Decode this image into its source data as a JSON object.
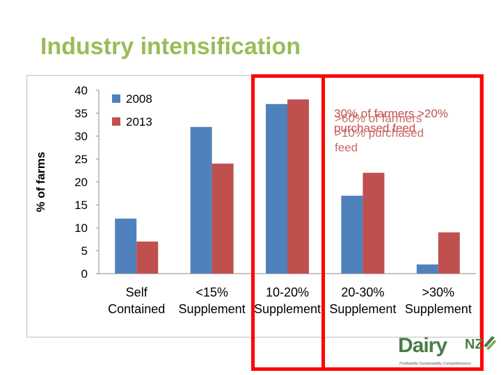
{
  "slide": {
    "title": "Industry intensification"
  },
  "annotations": {
    "line_a1": "30% of farmers >20%",
    "line_a2": "purchased feed",
    "line_b1": ">60% of farmers",
    "line_b2": ">10% purchased",
    "line_b3": "feed"
  },
  "logo": {
    "dairy": "Dairy",
    "nz": "NZ",
    "tagline": "Profitability Sustainability Competitiveness"
  },
  "colors": {
    "title": "#9bbb59",
    "series_2008": "#4f81bd",
    "series_2013": "#c0504d",
    "highlight": "#ff0000"
  },
  "chart_data": {
    "type": "bar",
    "title": "",
    "xlabel": "",
    "ylabel": "% of farms",
    "ylim": [
      0,
      40
    ],
    "yticks": [
      0,
      5,
      10,
      15,
      20,
      25,
      30,
      35,
      40
    ],
    "categories": [
      [
        "Self",
        "Contained"
      ],
      [
        "<15%",
        "Supplement"
      ],
      [
        "10-20%",
        "Supplement"
      ],
      [
        "20-30%",
        "Supplement"
      ],
      [
        ">30%",
        "Supplement"
      ]
    ],
    "series": [
      {
        "name": "2008",
        "color": "#4f81bd",
        "values": [
          12,
          32,
          37,
          17,
          2
        ]
      },
      {
        "name": "2013",
        "color": "#c0504d",
        "values": [
          7,
          24,
          38,
          22,
          9
        ]
      }
    ],
    "legend_position": "top-left"
  }
}
